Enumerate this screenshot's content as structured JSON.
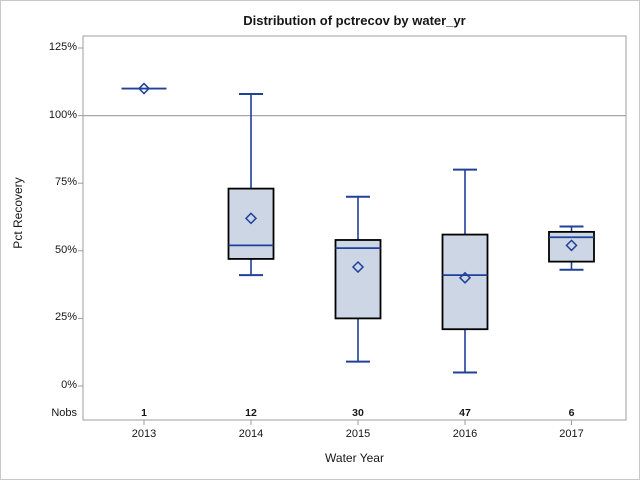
{
  "figure": {
    "title": "Distribution of pctrecov by water_yr",
    "y_axis": {
      "label": "Pct Recovery",
      "ticks": [
        "0%",
        "25%",
        "50%",
        "75%",
        "100%",
        "125%"
      ]
    },
    "x_axis": {
      "label": "Water Year",
      "ticks": [
        "2013",
        "2014",
        "2015",
        "2016",
        "2017"
      ]
    },
    "nobs": {
      "label": "Nobs",
      "values": [
        "1",
        "12",
        "30",
        "47",
        "6"
      ]
    }
  },
  "chart_data": {
    "type": "box",
    "title": "Distribution of pctrecov by water_yr",
    "xlabel": "Water Year",
    "ylabel": "Pct Recovery",
    "categories": [
      "2013",
      "2014",
      "2015",
      "2016",
      "2017"
    ],
    "nobs": [
      1,
      12,
      30,
      47,
      6
    ],
    "y_ticks": [
      0,
      25,
      50,
      75,
      100,
      125
    ],
    "y_tick_format": "percent",
    "ylim": [
      -12.5,
      129.5
    ],
    "grid": false,
    "reference_line_y": 100,
    "series": [
      {
        "category": "2013",
        "n": 1,
        "min": 110,
        "q1": 110,
        "median": 110,
        "q3": 110,
        "max": 110,
        "mean": 110
      },
      {
        "category": "2014",
        "n": 12,
        "min": 41,
        "q1": 47,
        "median": 52,
        "q3": 73,
        "max": 108,
        "mean": 62
      },
      {
        "category": "2015",
        "n": 30,
        "min": 9,
        "q1": 25,
        "median": 51,
        "q3": 54,
        "max": 70,
        "mean": 44
      },
      {
        "category": "2016",
        "n": 47,
        "min": 5,
        "q1": 21,
        "median": 41,
        "q3": 56,
        "max": 80,
        "mean": 40
      },
      {
        "category": "2017",
        "n": 6,
        "min": 43,
        "q1": 46,
        "median": 55,
        "q3": 57,
        "max": 59,
        "mean": 52
      }
    ],
    "colors": {
      "box_fill": "#cdd6e5",
      "box_border": "#000000",
      "line": "#204099",
      "frame": "#9c9c9c",
      "reference_line": "#a8a8a8",
      "text": "#161616",
      "figure_border": "#c9c9c9"
    }
  }
}
